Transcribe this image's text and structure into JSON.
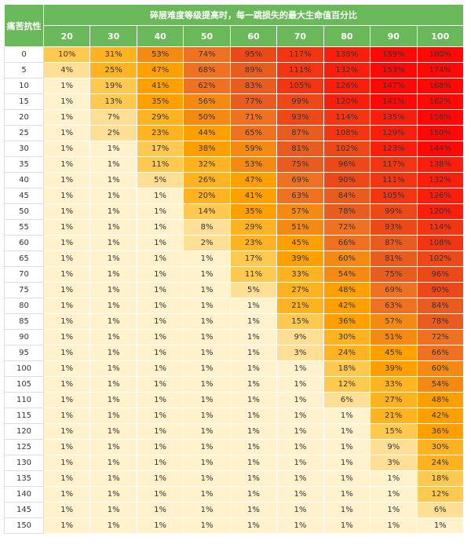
{
  "chart_data": {
    "type": "table",
    "title": "碎层难度等级提高时，每一跳损失的最大生命值百分比",
    "row_header_label": "痛苦抗性",
    "columns": [
      "20",
      "30",
      "40",
      "50",
      "60",
      "70",
      "80",
      "90",
      "100"
    ],
    "rows": [
      {
        "label": "0",
        "values": [
          "10%",
          "31%",
          "53%",
          "74%",
          "95%",
          "117%",
          "138%",
          "159%",
          "180%"
        ]
      },
      {
        "label": "5",
        "values": [
          "4%",
          "25%",
          "47%",
          "68%",
          "89%",
          "111%",
          "132%",
          "153%",
          "174%"
        ]
      },
      {
        "label": "10",
        "values": [
          "1%",
          "19%",
          "41%",
          "62%",
          "83%",
          "105%",
          "126%",
          "147%",
          "168%"
        ]
      },
      {
        "label": "15",
        "values": [
          "1%",
          "13%",
          "35%",
          "56%",
          "77%",
          "99%",
          "120%",
          "141%",
          "162%"
        ]
      },
      {
        "label": "20",
        "values": [
          "1%",
          "7%",
          "29%",
          "50%",
          "71%",
          "93%",
          "114%",
          "135%",
          "156%"
        ]
      },
      {
        "label": "25",
        "values": [
          "1%",
          "2%",
          "23%",
          "44%",
          "65%",
          "87%",
          "108%",
          "129%",
          "150%"
        ]
      },
      {
        "label": "30",
        "values": [
          "1%",
          "1%",
          "17%",
          "38%",
          "59%",
          "81%",
          "102%",
          "123%",
          "144%"
        ]
      },
      {
        "label": "35",
        "values": [
          "1%",
          "1%",
          "11%",
          "32%",
          "53%",
          "75%",
          "96%",
          "117%",
          "138%"
        ]
      },
      {
        "label": "40",
        "values": [
          "1%",
          "1%",
          "5%",
          "26%",
          "47%",
          "69%",
          "90%",
          "111%",
          "132%"
        ]
      },
      {
        "label": "45",
        "values": [
          "1%",
          "1%",
          "1%",
          "20%",
          "41%",
          "63%",
          "84%",
          "105%",
          "126%"
        ]
      },
      {
        "label": "50",
        "values": [
          "1%",
          "1%",
          "1%",
          "14%",
          "35%",
          "57%",
          "78%",
          "99%",
          "120%"
        ]
      },
      {
        "label": "55",
        "values": [
          "1%",
          "1%",
          "1%",
          "8%",
          "29%",
          "51%",
          "72%",
          "93%",
          "114%"
        ]
      },
      {
        "label": "60",
        "values": [
          "1%",
          "1%",
          "1%",
          "2%",
          "23%",
          "45%",
          "66%",
          "87%",
          "108%"
        ]
      },
      {
        "label": "65",
        "values": [
          "1%",
          "1%",
          "1%",
          "1%",
          "17%",
          "39%",
          "60%",
          "81%",
          "102%"
        ]
      },
      {
        "label": "70",
        "values": [
          "1%",
          "1%",
          "1%",
          "1%",
          "11%",
          "33%",
          "54%",
          "75%",
          "96%"
        ]
      },
      {
        "label": "75",
        "values": [
          "1%",
          "1%",
          "1%",
          "1%",
          "5%",
          "27%",
          "48%",
          "69%",
          "90%"
        ]
      },
      {
        "label": "80",
        "values": [
          "1%",
          "1%",
          "1%",
          "1%",
          "1%",
          "21%",
          "42%",
          "63%",
          "84%"
        ]
      },
      {
        "label": "85",
        "values": [
          "1%",
          "1%",
          "1%",
          "1%",
          "1%",
          "15%",
          "36%",
          "57%",
          "78%"
        ]
      },
      {
        "label": "90",
        "values": [
          "1%",
          "1%",
          "1%",
          "1%",
          "1%",
          "9%",
          "30%",
          "51%",
          "72%"
        ]
      },
      {
        "label": "95",
        "values": [
          "1%",
          "1%",
          "1%",
          "1%",
          "1%",
          "3%",
          "24%",
          "45%",
          "66%"
        ]
      },
      {
        "label": "100",
        "values": [
          "1%",
          "1%",
          "1%",
          "1%",
          "1%",
          "1%",
          "18%",
          "39%",
          "60%"
        ]
      },
      {
        "label": "105",
        "values": [
          "1%",
          "1%",
          "1%",
          "1%",
          "1%",
          "1%",
          "12%",
          "33%",
          "54%"
        ]
      },
      {
        "label": "110",
        "values": [
          "1%",
          "1%",
          "1%",
          "1%",
          "1%",
          "1%",
          "6%",
          "27%",
          "48%"
        ]
      },
      {
        "label": "115",
        "values": [
          "1%",
          "1%",
          "1%",
          "1%",
          "1%",
          "1%",
          "1%",
          "21%",
          "42%"
        ]
      },
      {
        "label": "120",
        "values": [
          "1%",
          "1%",
          "1%",
          "1%",
          "1%",
          "1%",
          "1%",
          "15%",
          "36%"
        ]
      },
      {
        "label": "125",
        "values": [
          "1%",
          "1%",
          "1%",
          "1%",
          "1%",
          "1%",
          "1%",
          "9%",
          "30%"
        ]
      },
      {
        "label": "130",
        "values": [
          "1%",
          "1%",
          "1%",
          "1%",
          "1%",
          "1%",
          "1%",
          "3%",
          "24%"
        ]
      },
      {
        "label": "135",
        "values": [
          "1%",
          "1%",
          "1%",
          "1%",
          "1%",
          "1%",
          "1%",
          "1%",
          "18%"
        ]
      },
      {
        "label": "140",
        "values": [
          "1%",
          "1%",
          "1%",
          "1%",
          "1%",
          "1%",
          "1%",
          "1%",
          "12%"
        ]
      },
      {
        "label": "145",
        "values": [
          "1%",
          "1%",
          "1%",
          "1%",
          "1%",
          "1%",
          "1%",
          "1%",
          "6%"
        ]
      },
      {
        "label": "150",
        "values": [
          "1%",
          "1%",
          "1%",
          "1%",
          "1%",
          "1%",
          "1%",
          "1%",
          "1%"
        ]
      }
    ],
    "header_color": "#69b85a",
    "color_scale": [
      "#fff2cc",
      "#ffa000",
      "#ff0806"
    ]
  }
}
